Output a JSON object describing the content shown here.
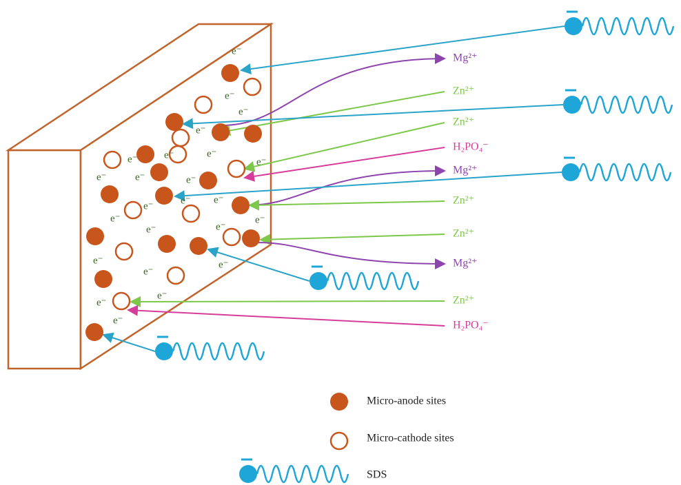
{
  "electron_labels": [
    "e⁻",
    "e⁻",
    "e⁻",
    "e⁻",
    "e⁻",
    "e⁻",
    "e⁻",
    "e⁻",
    "e⁻",
    "e⁻",
    "e⁻",
    "e⁻",
    "e⁻",
    "e⁻",
    "e⁻",
    "e⁻",
    "e⁻",
    "e⁻",
    "e⁻",
    "e⁻",
    "e⁻",
    "e⁻",
    "e⁻",
    "e⁻"
  ],
  "ions": [
    "Mg²⁺",
    "Zn²⁺",
    "Zn²⁺",
    "H₂PO₄⁻",
    "Mg²⁺",
    "Zn²⁺",
    "Zn²⁺",
    "Mg²⁺",
    "Zn²⁺",
    "H₂PO₄⁻"
  ],
  "legend": {
    "anode": "Micro-anode sites",
    "cathode": "Micro-cathode sites",
    "sds": "SDS"
  }
}
